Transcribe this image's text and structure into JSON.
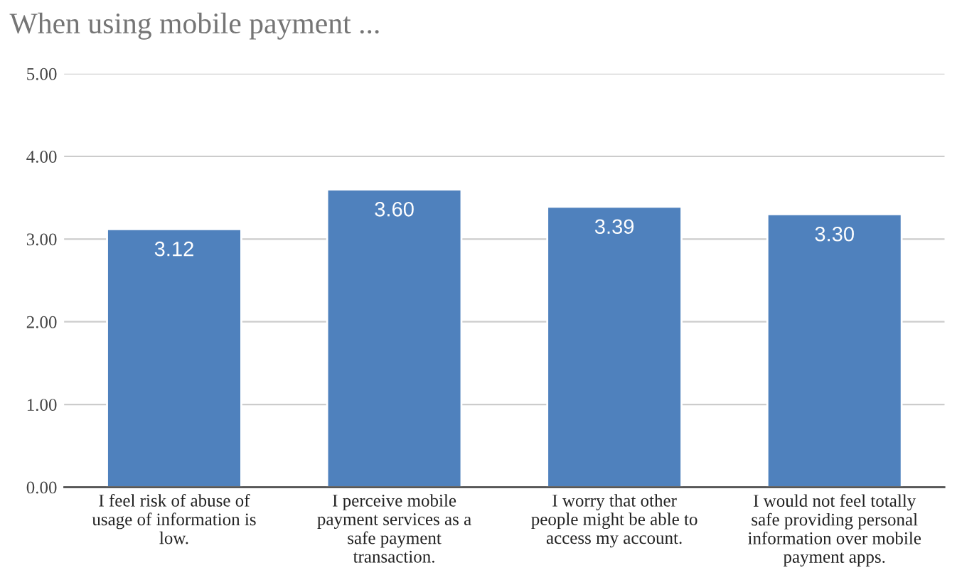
{
  "chart_data": {
    "type": "bar",
    "title": "When using mobile payment ...",
    "categories": [
      "I feel risk of abuse of\nusage of information is\nlow.",
      "I perceive mobile\npayment services as a\nsafe payment\ntransaction.",
      "I worry that other\npeople might be able to\naccess my account.",
      "I would not feel totally\nsafe providing personal\ninformation over mobile\npayment apps."
    ],
    "values": [
      3.12,
      3.6,
      3.39,
      3.3
    ],
    "value_labels": [
      "3.12",
      "3.60",
      "3.39",
      "3.30"
    ],
    "color": "#4f81bd",
    "ylim": [
      0,
      5
    ],
    "yticks": [
      {
        "value": 0,
        "label": "0.00"
      },
      {
        "value": 1,
        "label": "1.00"
      },
      {
        "value": 2,
        "label": "2.00"
      },
      {
        "value": 3,
        "label": "3.00"
      },
      {
        "value": 4,
        "label": "4.00"
      },
      {
        "value": 5,
        "label": "5.00"
      }
    ],
    "grid": "y",
    "legend": false
  }
}
